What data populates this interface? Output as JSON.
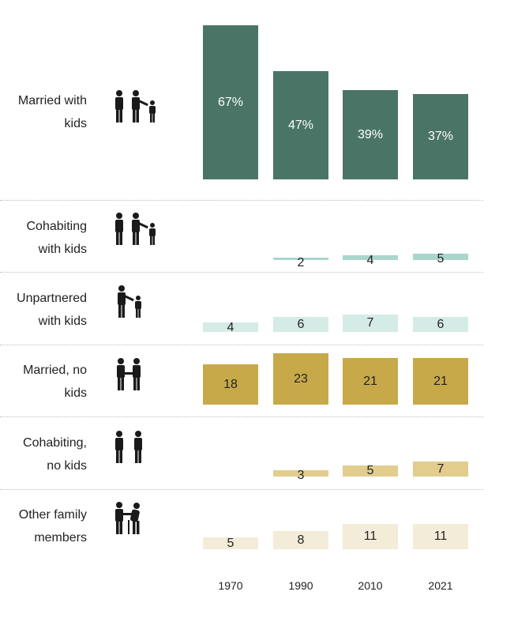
{
  "chart_data": {
    "type": "bar",
    "categories": [
      "1970",
      "1990",
      "2010",
      "2021"
    ],
    "series": [
      {
        "name": "Married with kids",
        "label_lines": [
          "Married with",
          "kids"
        ],
        "icon": "two-adults-child-icon",
        "color": "#4a7566",
        "label_color": "#ffffff",
        "values": [
          67,
          47,
          39,
          37
        ],
        "value_labels": [
          "67%",
          "47%",
          "39%",
          "37%"
        ]
      },
      {
        "name": "Cohabiting with kids",
        "label_lines": [
          "Cohabiting",
          "with kids"
        ],
        "icon": "two-adults-child-icon",
        "color": "#a9d6cc",
        "label_color": "#222222",
        "values": [
          null,
          2,
          4,
          5
        ],
        "value_labels": [
          "",
          "2",
          "4",
          "5"
        ]
      },
      {
        "name": "Unpartnered with kids",
        "label_lines": [
          "Unpartnered",
          "with kids"
        ],
        "icon": "adult-child-icon",
        "color": "#d5ebe6",
        "label_color": "#222222",
        "values": [
          4,
          6,
          7,
          6
        ],
        "value_labels": [
          "4",
          "6",
          "7",
          "6"
        ]
      },
      {
        "name": "Married, no kids",
        "label_lines": [
          "Married, no",
          "kids"
        ],
        "icon": "couple-holding-hands-icon",
        "color": "#c8a94a",
        "label_color": "#222222",
        "values": [
          18,
          23,
          21,
          21
        ],
        "value_labels": [
          "18",
          "23",
          "21",
          "21"
        ]
      },
      {
        "name": "Cohabiting, no kids",
        "label_lines": [
          "Cohabiting,",
          "no kids"
        ],
        "icon": "two-adults-icon",
        "color": "#e2cd8c",
        "label_color": "#222222",
        "values": [
          null,
          3,
          5,
          7
        ],
        "value_labels": [
          "",
          "3",
          "5",
          "7"
        ]
      },
      {
        "name": "Other family members",
        "label_lines": [
          "Other family",
          "members"
        ],
        "icon": "adult-elderly-icon",
        "color": "#f3ecd8",
        "label_color": "#222222",
        "values": [
          5,
          8,
          11,
          11
        ],
        "value_labels": [
          "5",
          "8",
          "11",
          "11"
        ]
      }
    ],
    "title": "",
    "xlabel": "",
    "ylabel": "",
    "grid": false,
    "legend": "none"
  }
}
